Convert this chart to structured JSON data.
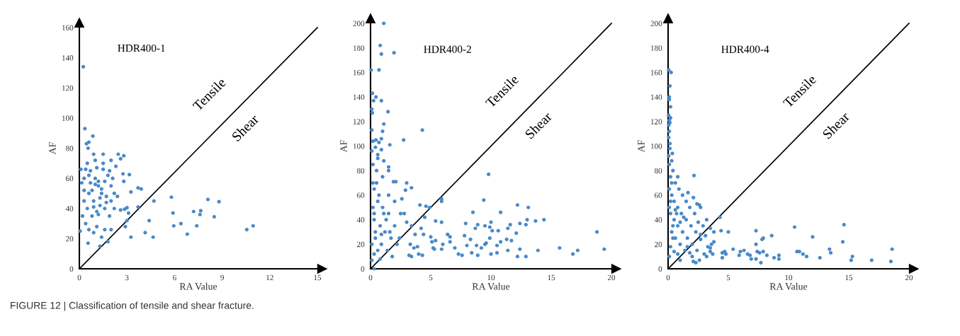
{
  "chart_data": [
    {
      "type": "scatter",
      "title": "HDR400-1",
      "xlabel": "RA Value",
      "ylabel": "AF",
      "xlim": [
        0,
        15
      ],
      "ylim": [
        0,
        160
      ],
      "xticks": [
        0,
        3,
        6,
        9,
        12,
        15
      ],
      "yticks": [
        0,
        20,
        40,
        60,
        80,
        100,
        120,
        140,
        160
      ],
      "grid": false,
      "legend": false,
      "annotations": [
        "Tensile",
        "Shear",
        "FIGURE 12 | Classification of tensile and shear fracture."
      ],
      "series": [
        {
          "marker": "circle",
          "color": "#4a89c8",
          "x": [
            0.25,
            0.35,
            0.85,
            0.45,
            0.6,
            0.55,
            2.45,
            2.8,
            2.6,
            3.15,
            3.25,
            3.7,
            3.9,
            3.7,
            4.7,
            4.4,
            4.15,
            4.65,
            3.25,
            5.8,
            5.9,
            5.95,
            6.4,
            6.8,
            7.2,
            7.4,
            7.6,
            7.65,
            8.1,
            8.5,
            8.8,
            10.55,
            10.95,
            0.55,
            1.3,
            1.8,
            1.4,
            0.1,
            0.15,
            0.05,
            2.9,
            3,
            2.6,
            2.85,
            3.1,
            3,
            2.8,
            2.75,
            0.9,
            1.5,
            0.5,
            0.7,
            1.0,
            1.2,
            1.4,
            1.6,
            1.8,
            2.0,
            2.2,
            2.3,
            2.0,
            1.0,
            0.3,
            0.3,
            0.5,
            0.8,
            1.2,
            1.6,
            2.0,
            2.4,
            0.4,
            0.6,
            0.9,
            1.1,
            1.6,
            2.0,
            0.2,
            0.3,
            0.6,
            0.9,
            1.3,
            1.7,
            1.9,
            2.2,
            0.7,
            1.5,
            1.1,
            2.1,
            0.8,
            1.3,
            1.0,
            1.4,
            1.2,
            0.6,
            1.7,
            0.4,
            1.9,
            1.1,
            0.9,
            1.5
          ],
          "values": [
            134,
            93,
            88,
            83,
            84,
            80,
            76,
            75,
            73,
            62.5,
            51,
            53.7,
            53,
            41,
            45,
            32,
            24,
            21,
            21,
            47.5,
            37,
            28.5,
            30,
            23,
            38,
            28.5,
            36,
            38.5,
            46,
            34.5,
            44.5,
            26,
            28.5,
            17,
            15,
            18,
            21,
            66,
            57,
            25,
            28,
            32,
            39,
            39.5,
            37,
            40.5,
            58,
            63,
            76,
            76,
            70,
            65,
            60,
            55,
            50,
            58,
            62,
            55,
            50,
            68,
            72,
            72,
            60,
            45,
            40,
            35,
            36,
            40,
            45,
            48,
            30,
            26,
            24,
            28,
            26,
            26,
            35,
            52,
            50,
            45,
            42,
            48,
            35,
            40,
            57,
            66,
            67,
            60,
            52,
            47,
            56,
            53,
            58,
            62,
            44,
            66,
            65,
            38,
            41,
            70
          ]
        },
        {
          "type": "line",
          "marker": "none",
          "color": "#000000",
          "x": [
            0,
            15
          ],
          "values": [
            0,
            160
          ]
        }
      ]
    },
    {
      "type": "scatter",
      "title": "HDR400-2",
      "xlabel": "RA Value",
      "ylabel": "AF",
      "xlim": [
        0,
        20
      ],
      "ylim": [
        0,
        200
      ],
      "xticks": [
        0,
        5,
        10,
        15,
        20
      ],
      "yticks": [
        0,
        20,
        40,
        60,
        80,
        100,
        120,
        140,
        160,
        180,
        200
      ],
      "grid": false,
      "legend": false,
      "annotations": [
        "Tensile",
        "Shear"
      ],
      "series": [
        {
          "marker": "circle",
          "color": "#4a89c8",
          "x": [
            1.1,
            0.8,
            0.9,
            1.95,
            0.05,
            0.7,
            0.15,
            0.25,
            0.45,
            0.9,
            1.45,
            0.1,
            0.15,
            1.1,
            0.1,
            1.0,
            4.3,
            2.75,
            1.6,
            0.9,
            0.45,
            0.2,
            0.7,
            0.4,
            0.1,
            0.9,
            1.1,
            0.6,
            0.6,
            1.5,
            1.5,
            9.8,
            3.0,
            2.1,
            1.9,
            3.4,
            2.9,
            5.9,
            5.9,
            9.4,
            12.2,
            13.1,
            4.1,
            4.6,
            4.9,
            8.5,
            10.8,
            13.0,
            13.7,
            14.4,
            11.6,
            12.4,
            12.9,
            10.0,
            9.5,
            9.9,
            10.1,
            10.6,
            11.4,
            7.9,
            8.9,
            8.7,
            18.8,
            12.1,
            6.4,
            6.6,
            7.8,
            8.3,
            9.9,
            11.3,
            10.8,
            11.7,
            5.9,
            5.4,
            9.6,
            9.5,
            9.2,
            10.5,
            8.0,
            8.8,
            7.0,
            6.6,
            5.4,
            3.3,
            3.6,
            3.9,
            4.0,
            4.3,
            3.2,
            3.4,
            5.3,
            5.9,
            6.0,
            7.3,
            7.6,
            8.4,
            8.9,
            10.0,
            10.5,
            11.4,
            12.2,
            12.9,
            12.4,
            13.9,
            15.7,
            16.8,
            17.2,
            19.4,
            0.3,
            2.5,
            3.0,
            2.8,
            3.4,
            4.5,
            4.2,
            3.7,
            4.4,
            5.0,
            5.1,
            5.2,
            2.4,
            2.0,
            2.6,
            1.5,
            1.0,
            0.5,
            0.2,
            0.3,
            0.6,
            1.0,
            1.5,
            0.3,
            0.8,
            1.2,
            1.7,
            0.4,
            0.9,
            1.4,
            1.8,
            0.3,
            0.1,
            0.8,
            0.2,
            0.5,
            1.3,
            2.0,
            2.2,
            0.1,
            0.4,
            0.7,
            1.1,
            0.2,
            0.6,
            0.3,
            1.6,
            0.9
          ],
          "values": [
            200,
            182,
            175,
            176,
            162,
            162,
            143,
            137,
            140,
            137,
            128,
            130,
            127,
            118,
            113,
            112,
            113,
            105,
            101,
            106,
            105,
            104,
            103,
            99,
            96,
            97,
            88,
            93,
            90,
            83,
            80,
            77,
            70,
            71,
            71,
            66,
            64,
            57,
            55,
            56,
            52,
            50,
            52,
            51,
            50,
            46,
            46,
            40,
            39,
            40,
            36,
            37,
            36,
            38,
            35,
            34,
            31,
            31,
            33,
            37,
            36,
            33,
            30,
            29,
            28,
            26,
            27,
            24,
            25,
            24,
            22,
            23,
            38,
            39,
            21,
            20,
            17,
            19,
            19,
            19,
            17,
            22,
            23,
            20,
            17,
            18,
            12,
            11,
            11,
            10,
            16,
            16,
            20,
            12,
            11,
            13,
            11,
            12,
            13,
            15,
            10,
            10,
            16,
            15,
            17,
            12,
            15,
            16,
            0,
            45,
            38,
            45,
            35,
            42,
            33,
            28,
            28,
            26,
            22,
            17,
            25,
            55,
            57,
            60,
            75,
            80,
            85,
            65,
            55,
            50,
            45,
            40,
            35,
            30,
            25,
            25,
            20,
            15,
            10,
            12,
            7,
            8,
            50,
            70,
            40,
            35,
            20,
            20,
            30,
            60,
            45,
            70,
            15,
            45,
            30,
            28
          ]
        },
        {
          "type": "line",
          "color": "#000000",
          "x": [
            0,
            20
          ],
          "values": [
            0,
            200
          ]
        }
      ]
    },
    {
      "type": "scatter",
      "title": "HDR400-4",
      "xlabel": "RA Value",
      "ylabel": "AF",
      "xlim": [
        0,
        20
      ],
      "ylim": [
        0,
        200
      ],
      "xticks": [
        0,
        5,
        10,
        15,
        20
      ],
      "yticks": [
        0,
        20,
        40,
        60,
        80,
        100,
        120,
        140,
        160,
        180,
        200
      ],
      "grid": false,
      "legend": false,
      "annotations": [
        "Tensile",
        "Shear"
      ],
      "series": [
        {
          "marker": "circle",
          "color": "#4a89c8",
          "x": [
            0.05,
            0.25,
            0.15,
            0.1,
            0.1,
            0.2,
            0.05,
            0.2,
            0.1,
            0.15,
            0.05,
            0.1,
            0.05,
            0.15,
            0.35,
            0.05,
            2.15,
            0.8,
            1.65,
            2.1,
            2.4,
            2.6,
            2.7,
            4.3,
            3.2,
            4.4,
            5.0,
            7.3,
            10.5,
            14.6,
            8.6,
            12.0,
            7.9,
            7.8,
            7.3,
            14.5,
            5.4,
            6.0,
            6.3,
            5.9,
            6.6,
            6.8,
            6.9,
            7.4,
            7.6,
            7.7,
            7.3,
            7.9,
            8.2,
            8.8,
            9.2,
            9.2,
            10.7,
            10.9,
            11.2,
            11.5,
            12.6,
            13.4,
            13.5,
            15.2,
            15.3,
            16.9,
            18.5,
            18.6,
            4.5,
            4.7,
            4.8,
            4.5,
            3.0,
            3.2,
            3.5,
            3.7,
            2.1,
            2.3,
            2.6,
            1.0,
            2.0,
            3.6,
            3.8,
            3.5,
            3.3,
            3.8,
            3.5,
            3.1,
            2.7,
            2.9,
            2.5,
            2.2,
            1.8,
            1.5,
            1.2,
            0.9,
            0.6,
            0.4,
            0.3,
            0.15,
            0.1,
            0.2,
            0.1,
            0.3,
            0.5,
            0.8,
            1.1,
            1.5,
            1.9,
            2.3,
            2.7,
            0.2,
            0.5,
            0.8,
            1.2,
            1.6,
            2.0,
            2.4,
            0.3,
            0.6,
            1.0,
            1.4,
            0.2,
            0.5,
            0.8,
            0.1,
            0.1,
            0.4,
            1.6,
            1.8,
            0.7,
            0.3,
            0.6,
            1.0,
            1.3,
            0.2,
            0.4
          ],
          "values": [
            162,
            160,
            149,
            140,
            138,
            132,
            125,
            123,
            121,
            119,
            117,
            112,
            107,
            102,
            94,
            92,
            76,
            75,
            62,
            58,
            53,
            52,
            50,
            42,
            40,
            31,
            30,
            31,
            34,
            36,
            27,
            26,
            25,
            24,
            20,
            22,
            16,
            14,
            15,
            11,
            12,
            11,
            8,
            14,
            13,
            5,
            8,
            14,
            11,
            9,
            11,
            8,
            14,
            14,
            12,
            10,
            9,
            16,
            13,
            7,
            10,
            7,
            6,
            16,
            13,
            14,
            12,
            9,
            12,
            10,
            14,
            12,
            6,
            5,
            7,
            7,
            10,
            20,
            22,
            17,
            18,
            30,
            33,
            27,
            24,
            35,
            38,
            45,
            50,
            55,
            60,
            65,
            70,
            80,
            88,
            98,
            85,
            75,
            65,
            60,
            55,
            50,
            45,
            40,
            35,
            30,
            28,
            45,
            40,
            35,
            30,
            25,
            20,
            15,
            30,
            25,
            20,
            15,
            18,
            14,
            12,
            10,
            50,
            35,
            18,
            13,
            45,
            70,
            48,
            38,
            42,
            55,
            25
          ]
        },
        {
          "type": "line",
          "color": "#000000",
          "x": [
            0,
            20
          ],
          "values": [
            0,
            200
          ]
        }
      ]
    }
  ]
}
